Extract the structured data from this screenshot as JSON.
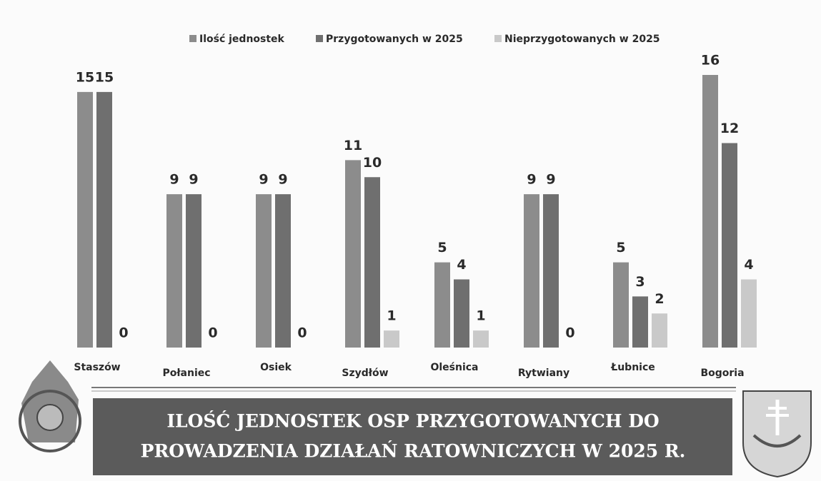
{
  "chart_data": {
    "type": "bar",
    "title": [
      "ILOŚĆ JEDNOSTEK OSP PRZYGOTOWANYCH DO",
      "PROWADZENIA DZIAŁAŃ RATOWNICZYCH W 2025 R."
    ],
    "categories": [
      "Staszów",
      "Połaniec",
      "Osiek",
      "Szydłów",
      "Oleśnica",
      "Rytwiany",
      "Łubnice",
      "Bogoria"
    ],
    "series": [
      {
        "name": "Ilość jednostek",
        "color": "#8c8c8c",
        "values": [
          15,
          9,
          9,
          11,
          5,
          9,
          5,
          16
        ]
      },
      {
        "name": "Przygotowanych w 2025",
        "color": "#6f6f6f",
        "values": [
          15,
          9,
          9,
          10,
          4,
          9,
          3,
          12
        ]
      },
      {
        "name": "Nieprzygotowanych w 2025",
        "color": "#c9c9c9",
        "values": [
          0,
          0,
          0,
          1,
          1,
          0,
          2,
          4
        ]
      }
    ]
  }
}
